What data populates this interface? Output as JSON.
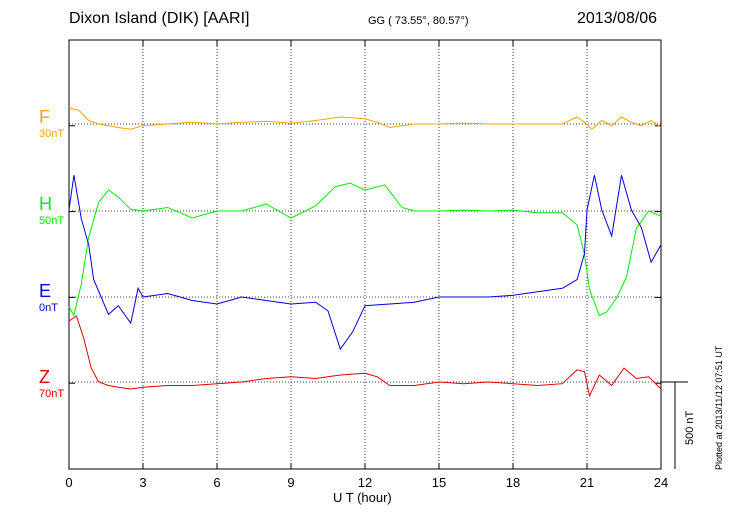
{
  "header": {
    "station": "Dixon Island (DIK)  [AARI]",
    "coords": "GG ( 73.55°,  80.57°)",
    "date": "2013/08/06"
  },
  "plotted_note": "Plotted at 2013/11/12 07:51  UT",
  "scale_bar_label": "500 nT",
  "chart_data": {
    "type": "line",
    "xlabel": "U T (hour)",
    "xlim": [
      0,
      24
    ],
    "xticks": [
      0,
      3,
      6,
      9,
      12,
      15,
      18,
      21,
      24
    ],
    "grid": "dotted vertical lines every 3 hours, dotted baseline per component",
    "units_per_scale_bar": 500,
    "series": [
      {
        "name": "F",
        "baseline_label": "30nT",
        "color": "#f0a800",
        "x": [
          0,
          0.4,
          0.8,
          1.2,
          1.6,
          2.0,
          2.5,
          3.0,
          4.0,
          5.0,
          6.0,
          7.0,
          8.0,
          9.0,
          10.0,
          11.0,
          12.0,
          12.5,
          13.0,
          14.0,
          15.0,
          16.0,
          17.0,
          18.0,
          19.0,
          20.0,
          20.6,
          20.9,
          21.2,
          21.6,
          22.0,
          22.4,
          22.8,
          23.2,
          23.6,
          24.0
        ],
        "y": [
          90,
          80,
          20,
          0,
          -10,
          -20,
          -30,
          -10,
          0,
          10,
          0,
          10,
          15,
          5,
          20,
          40,
          30,
          10,
          -20,
          0,
          0,
          5,
          0,
          0,
          0,
          0,
          40,
          10,
          -30,
          20,
          -10,
          40,
          10,
          -10,
          20,
          -20
        ]
      },
      {
        "name": "H",
        "baseline_label": "50nT",
        "color": "#00ee00",
        "x": [
          0,
          0.2,
          0.5,
          0.8,
          1.2,
          1.6,
          2.0,
          2.5,
          3.0,
          4.0,
          5.0,
          6.0,
          7.0,
          8.0,
          9.0,
          10.0,
          10.8,
          11.4,
          12.0,
          12.8,
          13.5,
          14.0,
          15.0,
          16.0,
          17.0,
          18.0,
          19.0,
          20.0,
          20.6,
          20.9,
          21.1,
          21.5,
          21.8,
          22.2,
          22.6,
          23.0,
          23.5,
          24.0
        ],
        "y": [
          -550,
          -600,
          -420,
          -150,
          50,
          120,
          80,
          10,
          0,
          20,
          -40,
          0,
          0,
          40,
          -40,
          30,
          140,
          160,
          120,
          150,
          20,
          0,
          0,
          5,
          0,
          5,
          -10,
          -10,
          -80,
          -250,
          -450,
          -600,
          -580,
          -500,
          -380,
          -100,
          0,
          -30
        ]
      },
      {
        "name": "E",
        "baseline_label": "0nT",
        "color": "#0000e0",
        "x": [
          0,
          0.2,
          0.5,
          0.8,
          1.0,
          1.3,
          1.6,
          2.0,
          2.5,
          2.8,
          3.0,
          4.0,
          5.0,
          6.0,
          7.0,
          8.0,
          9.0,
          10.0,
          10.5,
          11.0,
          11.5,
          12.0,
          13.0,
          14.0,
          15.0,
          16.0,
          17.0,
          18.0,
          19.0,
          20.0,
          20.6,
          20.9,
          21.0,
          21.3,
          21.6,
          22.0,
          22.4,
          22.8,
          23.2,
          23.6,
          24.0
        ],
        "y": [
          500,
          700,
          450,
          300,
          100,
          0,
          -100,
          -50,
          -150,
          50,
          0,
          20,
          -20,
          -40,
          0,
          -20,
          -40,
          -30,
          -80,
          -300,
          -200,
          -50,
          -40,
          -30,
          0,
          0,
          0,
          10,
          30,
          50,
          100,
          250,
          500,
          700,
          500,
          350,
          700,
          500,
          400,
          200,
          300
        ]
      },
      {
        "name": "Z",
        "baseline_label": "70nT",
        "color": "#e00000",
        "x": [
          0,
          0.3,
          0.6,
          0.9,
          1.2,
          1.6,
          2.0,
          2.5,
          3.0,
          4.0,
          5.0,
          6.0,
          7.0,
          8.0,
          9.0,
          10.0,
          11.0,
          12.0,
          12.5,
          13.0,
          14.0,
          15.0,
          16.0,
          17.0,
          18.0,
          19.0,
          20.0,
          20.6,
          20.9,
          21.1,
          21.5,
          22.0,
          22.5,
          23.0,
          23.5,
          24.0
        ],
        "y": [
          350,
          380,
          250,
          80,
          0,
          -20,
          -30,
          -40,
          -30,
          -20,
          -20,
          -10,
          0,
          20,
          30,
          20,
          40,
          50,
          30,
          -20,
          -20,
          0,
          -10,
          0,
          -10,
          -20,
          -10,
          70,
          60,
          -80,
          40,
          -20,
          80,
          20,
          30,
          -40
        ]
      }
    ]
  }
}
